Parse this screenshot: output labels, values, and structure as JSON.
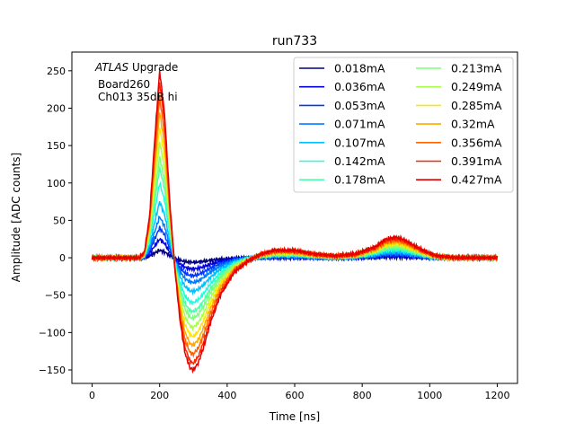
{
  "chart_data": {
    "type": "line",
    "title": "run733",
    "xlabel": "Time [ns]",
    "ylabel": "Amplitude [ADC counts]",
    "xlim": [
      -60,
      1260
    ],
    "ylim": [
      -168,
      275
    ],
    "xticks": [
      0,
      200,
      400,
      600,
      800,
      1000,
      1200
    ],
    "yticks": [
      -150,
      -100,
      -50,
      0,
      50,
      100,
      150,
      200,
      250
    ],
    "xtick_labels": [
      "0",
      "200",
      "400",
      "600",
      "800",
      "1000",
      "1200"
    ],
    "ytick_labels": [
      "−150",
      "−100",
      "−50",
      "0",
      "50",
      "100",
      "150",
      "200",
      "250"
    ],
    "grid": false,
    "legend_position": "upper-right",
    "legend_columns": 2,
    "annotation": {
      "italic": "ATLAS",
      "rest": " Upgrade",
      "line2": "Board260",
      "line3": "Ch013 35dB hi"
    },
    "series_shape": {
      "x": [
        0,
        50,
        100,
        140,
        155,
        170,
        185,
        200,
        215,
        230,
        245,
        260,
        275,
        290,
        300,
        315,
        330,
        350,
        380,
        420,
        460,
        500,
        540,
        600,
        660,
        720,
        780,
        840,
        870,
        900,
        920,
        950,
        980,
        1020,
        1080,
        1140,
        1200
      ],
      "y_normalized": [
        0,
        0,
        0,
        0,
        0.03,
        0.22,
        0.62,
        1.0,
        0.76,
        0.3,
        -0.06,
        -0.33,
        -0.51,
        -0.59,
        -0.6,
        -0.56,
        -0.48,
        -0.35,
        -0.2,
        -0.08,
        -0.02,
        0.02,
        0.04,
        0.04,
        0.02,
        0.01,
        0.02,
        0.06,
        0.1,
        0.11,
        0.1,
        0.07,
        0.04,
        0.01,
        0,
        0,
        0
      ]
    },
    "series": [
      {
        "name": "0.018mA",
        "color": "#00007f",
        "peak": 10
      },
      {
        "name": "0.036mA",
        "color": "#0000e3",
        "peak": 25
      },
      {
        "name": "0.053mA",
        "color": "#0038ff",
        "peak": 40
      },
      {
        "name": "0.071mA",
        "color": "#007cff",
        "peak": 55
      },
      {
        "name": "0.107mA",
        "color": "#00c0ff",
        "peak": 75
      },
      {
        "name": "0.142mA",
        "color": "#1cffdb",
        "peak": 100
      },
      {
        "name": "0.178mA",
        "color": "#4dffaa",
        "peak": 120
      },
      {
        "name": "0.213mA",
        "color": "#7eff79",
        "peak": 135
      },
      {
        "name": "0.249mA",
        "color": "#aaff4d",
        "peak": 155
      },
      {
        "name": "0.285mA",
        "color": "#ffe600",
        "peak": 175
      },
      {
        "name": "0.32mA",
        "color": "#ffa700",
        "peak": 195
      },
      {
        "name": "0.356mA",
        "color": "#ff6400",
        "peak": 215
      },
      {
        "name": "0.391mA",
        "color": "#ff2500",
        "peak": 235
      },
      {
        "name": "0.427mA",
        "color": "#e30000",
        "peak": 250
      }
    ]
  }
}
